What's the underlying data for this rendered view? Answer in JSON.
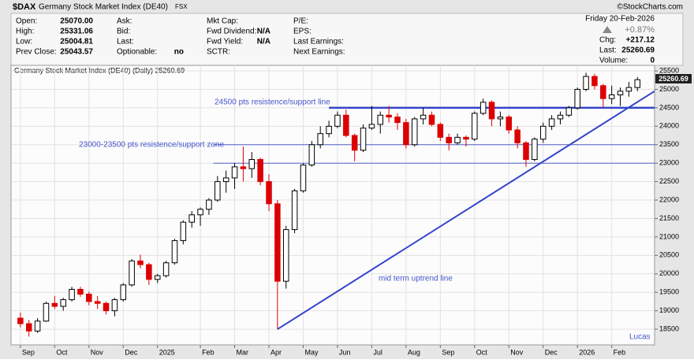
{
  "header": {
    "symbol": "$DAX",
    "name": "Germany Stock Market Index (DE40)",
    "exchange": "FSX",
    "copyright": "©StockCharts.com",
    "date": "Friday 20-Feb-2026",
    "pct_change": "+0.87%",
    "columns": [
      [
        {
          "label": "Open:",
          "value": "25070.00"
        },
        {
          "label": "High:",
          "value": "25331.06"
        },
        {
          "label": "Low:",
          "value": "25004.81"
        },
        {
          "label": "Prev Close:",
          "value": "25043.57"
        }
      ],
      [
        {
          "label": "Ask:"
        },
        {
          "label": "Bid:"
        },
        {
          "label": "Last:"
        },
        {
          "label": "Optionable:",
          "value": "no"
        }
      ],
      [
        {
          "label": "Mkt Cap:"
        },
        {
          "label": "Fwd Dividend:",
          "value": "N/A"
        },
        {
          "label": "Fwd Yield:",
          "value": "N/A"
        },
        {
          "label": "SCTR:"
        }
      ],
      [
        {
          "label": "P/E:"
        },
        {
          "label": "EPS:"
        },
        {
          "label": "Last Earnings:"
        },
        {
          "label": "Next Earnings:"
        }
      ]
    ],
    "right": [
      {
        "label": "Chg:",
        "value": "+217.12"
      },
      {
        "label": "Last:",
        "value": "25260.69"
      },
      {
        "label": "Volume:",
        "value": "0"
      }
    ],
    "legend": "Germany Stock Market Index (DE40) (Daily) 25260.69",
    "price_tag": "25260.69"
  },
  "chart_data": {
    "type": "candlestick",
    "up_color": "#000000",
    "down_color": "#dd0000",
    "grid": true,
    "x": [
      0,
      1,
      2,
      3,
      4,
      5,
      6,
      7,
      8,
      9,
      10,
      11,
      12,
      13,
      14,
      15,
      16,
      17,
      18,
      19,
      20,
      21,
      22,
      23,
      24,
      25,
      26,
      27,
      28,
      29,
      30,
      31,
      32,
      33,
      34,
      35,
      36,
      37,
      38,
      39,
      40,
      41,
      42,
      43,
      44,
      45,
      46,
      47,
      48,
      49,
      50,
      51,
      52,
      53,
      54,
      55,
      56,
      57,
      58,
      59,
      60,
      61,
      62,
      63,
      64,
      65,
      66,
      67,
      68,
      69,
      70,
      71,
      72
    ],
    "open": [
      18800,
      18650,
      18450,
      18720,
      19200,
      19120,
      19300,
      19580,
      19450,
      19250,
      19200,
      19000,
      19300,
      19700,
      20350,
      20250,
      19850,
      19950,
      20300,
      20900,
      21400,
      21600,
      21750,
      22000,
      22500,
      22600,
      22900,
      22850,
      23100,
      22500,
      21900,
      19800,
      21200,
      22250,
      22950,
      23500,
      23800,
      24000,
      24300,
      23750,
      23350,
      23950,
      24050,
      24300,
      24250,
      24100,
      23500,
      24200,
      24300,
      24050,
      23700,
      23550,
      23700,
      23650,
      24350,
      24650,
      24200,
      24250,
      23900,
      23550,
      23100,
      23650,
      24000,
      24200,
      24300,
      24500,
      25000,
      25350,
      25100,
      24750,
      24850,
      24950,
      25050
    ],
    "high": [
      18950,
      18750,
      18800,
      19250,
      19400,
      19350,
      19650,
      19650,
      19520,
      19400,
      19250,
      19350,
      19750,
      20400,
      20520,
      20300,
      20000,
      20350,
      20950,
      21450,
      21700,
      21800,
      22050,
      22650,
      22800,
      23000,
      23450,
      23300,
      23150,
      22700,
      22000,
      21300,
      22300,
      23000,
      23600,
      24000,
      24150,
      24400,
      24450,
      23800,
      24050,
      24550,
      24400,
      24550,
      24350,
      24200,
      24250,
      24500,
      24400,
      24100,
      23800,
      23800,
      23750,
      24400,
      24750,
      24700,
      24400,
      24300,
      24000,
      23600,
      23700,
      24100,
      24300,
      24400,
      24550,
      25050,
      25450,
      25420,
      25150,
      25100,
      25050,
      25200,
      25331.06
    ],
    "low": [
      18550,
      18300,
      18400,
      18700,
      19050,
      19000,
      19250,
      19380,
      19150,
      19050,
      18900,
      18850,
      19250,
      19650,
      20150,
      19700,
      19750,
      19900,
      20250,
      20800,
      21250,
      21300,
      21600,
      21950,
      22200,
      22300,
      22500,
      22600,
      22400,
      21700,
      18490,
      19600,
      21100,
      22200,
      22900,
      23400,
      23700,
      23950,
      23700,
      23050,
      23300,
      23900,
      23800,
      24100,
      23900,
      23400,
      23450,
      24050,
      24000,
      23600,
      23350,
      23500,
      23450,
      23600,
      24300,
      24000,
      24000,
      23800,
      23400,
      22900,
      23050,
      23550,
      23900,
      24050,
      24250,
      24450,
      24950,
      25000,
      24500,
      24600,
      24550,
      24800,
      24950
    ],
    "close": [
      18650,
      18450,
      18720,
      19200,
      19120,
      19300,
      19580,
      19450,
      19250,
      19200,
      19000,
      19300,
      19700,
      20350,
      20250,
      19850,
      19950,
      20300,
      20900,
      21400,
      21600,
      21750,
      22000,
      22500,
      22600,
      22900,
      22850,
      23100,
      22500,
      21900,
      19800,
      21200,
      22250,
      22950,
      23500,
      23800,
      24000,
      24300,
      23750,
      23350,
      23950,
      24050,
      24300,
      24250,
      24100,
      23500,
      24200,
      24300,
      24050,
      23700,
      23550,
      23700,
      23650,
      24350,
      24650,
      24200,
      24250,
      23900,
      23550,
      23100,
      23650,
      24000,
      24200,
      24300,
      24500,
      25000,
      25350,
      25100,
      24750,
      24850,
      24950,
      25050,
      25260.69
    ],
    "xlim": [
      -1,
      74
    ],
    "xticks": [
      {
        "value": 0,
        "label": "Sep"
      },
      {
        "value": 4,
        "label": "Oct"
      },
      {
        "value": 8,
        "label": "Nov"
      },
      {
        "value": 12,
        "label": "Dec"
      },
      {
        "value": 16,
        "label": "2025"
      },
      {
        "value": 21,
        "label": "Feb"
      },
      {
        "value": 25,
        "label": "Mar"
      },
      {
        "value": 29,
        "label": "Apr"
      },
      {
        "value": 33,
        "label": "May"
      },
      {
        "value": 37,
        "label": "Jun"
      },
      {
        "value": 41,
        "label": "Jul"
      },
      {
        "value": 45,
        "label": "Aug"
      },
      {
        "value": 49,
        "label": "Sep"
      },
      {
        "value": 53,
        "label": "Oct"
      },
      {
        "value": 57,
        "label": "Nov"
      },
      {
        "value": 61,
        "label": "Dec"
      },
      {
        "value": 65,
        "label": "2026"
      },
      {
        "value": 69,
        "label": "Feb"
      }
    ],
    "ylim": [
      18075,
      25650
    ],
    "yticks": [
      18500,
      19000,
      19500,
      20000,
      20500,
      21000,
      21500,
      22000,
      22500,
      23000,
      23500,
      24000,
      24500,
      25000,
      25500
    ],
    "hlines": [
      {
        "value": 24500,
        "x0": 36,
        "color": "#3344cc",
        "width": 2.5
      },
      {
        "value": 23500,
        "x0": 22.5,
        "color": "#5560cc",
        "width": 1
      },
      {
        "value": 23000,
        "x0": 22.5,
        "color": "#5560cc",
        "width": 1
      }
    ],
    "trendline": {
      "x": [
        30,
        74
      ],
      "y": [
        18500,
        24950
      ],
      "color": "#3344cc"
    },
    "annotations": [
      "24500 pts resistence/support line",
      "23000-23500 pts resistence/support zone",
      "mid term uptrend line",
      "Lucas"
    ]
  }
}
